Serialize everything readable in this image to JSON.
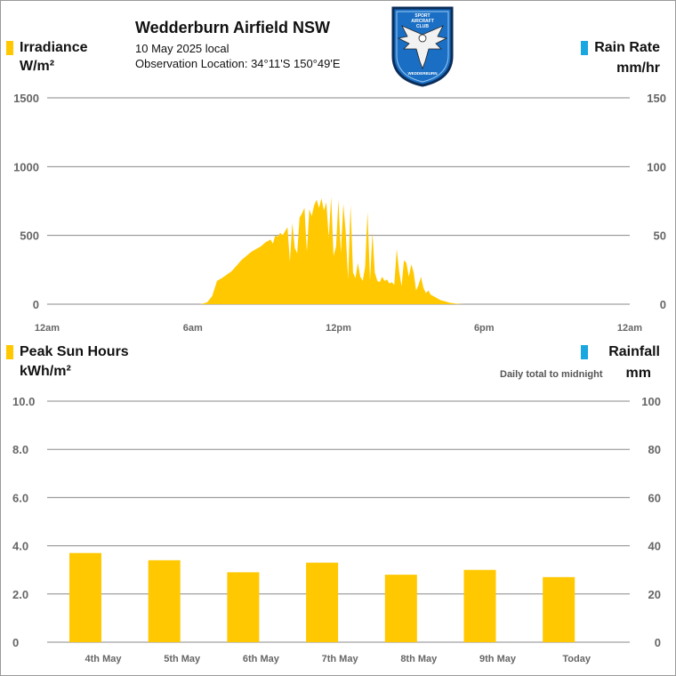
{
  "header": {
    "title": "Wedderburn Airfield NSW",
    "date_label": "10 May 2025 local",
    "location_label": "Observation Location: 34°11'S 150°49'E",
    "logo_text": [
      "SPORT",
      "AIRCRAFT",
      "CLUB",
      "WEDDERBURN"
    ]
  },
  "colors": {
    "irradiance": "#ffc800",
    "rain": "#1aa6e0",
    "grid": "#8a8a8a",
    "tick": "#666666"
  },
  "top_panel": {
    "left_title": "Irradiance",
    "left_unit": "W/m²",
    "right_title": "Rain Rate",
    "right_unit": "mm/hr"
  },
  "bottom_panel": {
    "left_title": "Peak Sun Hours",
    "left_unit": "kWh/m²",
    "right_title": "Rainfall",
    "right_unit": "mm",
    "note": "Daily total to midnight"
  },
  "chart_data": [
    {
      "type": "area",
      "series": [
        {
          "name": "Irradiance",
          "x": [
            6.3,
            6.5,
            6.6,
            6.8,
            7.0,
            7.2,
            7.4,
            7.6,
            7.8,
            8.0,
            8.2,
            8.4,
            8.6,
            8.8,
            9.0,
            9.1,
            9.2,
            9.3,
            9.4,
            9.5,
            9.6,
            9.7,
            9.8,
            9.9,
            10.0,
            10.1,
            10.2,
            10.3,
            10.4,
            10.5,
            10.6,
            10.7,
            10.8,
            10.9,
            11.0,
            11.1,
            11.2,
            11.3,
            11.4,
            11.5,
            11.6,
            11.7,
            11.8,
            11.9,
            12.0,
            12.1,
            12.2,
            12.3,
            12.4,
            12.5,
            12.6,
            12.7,
            12.8,
            12.9,
            13.0,
            13.1,
            13.2,
            13.3,
            13.4,
            13.5,
            13.6,
            13.7,
            13.8,
            13.9,
            14.0,
            14.1,
            14.2,
            14.3,
            14.4,
            14.5,
            14.6,
            14.7,
            14.8,
            14.9,
            15.0,
            15.1,
            15.2,
            15.3,
            15.4,
            15.5,
            15.6,
            15.7,
            15.8,
            15.9,
            16.0,
            16.2,
            16.4,
            16.6,
            16.8,
            17.0,
            17.2,
            17.4,
            17.6
          ],
          "y": [
            0,
            8,
            15,
            60,
            170,
            190,
            215,
            240,
            280,
            320,
            350,
            380,
            400,
            420,
            450,
            460,
            470,
            440,
            500,
            490,
            520,
            500,
            530,
            560,
            310,
            590,
            410,
            370,
            630,
            660,
            700,
            380,
            690,
            640,
            720,
            760,
            700,
            770,
            680,
            740,
            480,
            780,
            350,
            420,
            760,
            370,
            730,
            520,
            180,
            720,
            230,
            190,
            300,
            200,
            170,
            270,
            670,
            170,
            520,
            230,
            170,
            160,
            200,
            170,
            180,
            150,
            160,
            140,
            400,
            240,
            130,
            320,
            300,
            200,
            290,
            230,
            100,
            140,
            200,
            120,
            80,
            100,
            70,
            60,
            50,
            30,
            20,
            10,
            5,
            2,
            0,
            0,
            0
          ]
        },
        {
          "name": "Rain Rate",
          "x": [],
          "y": []
        }
      ],
      "x_ticks": [
        "12am",
        "6am",
        "12pm",
        "6pm",
        "12am"
      ],
      "y_ticks": [
        "0",
        "500",
        "1000",
        "1500"
      ],
      "y_ticks_right": [
        "0",
        "50",
        "100",
        "150"
      ],
      "ylim": [
        0,
        1500
      ],
      "ylim_right": [
        0,
        150
      ],
      "xlim_hours": [
        0,
        24
      ],
      "grid": true
    },
    {
      "type": "bar",
      "categories": [
        "4th May",
        "5th May",
        "6th May",
        "7th May",
        "8th May",
        "9th May",
        "Today"
      ],
      "series": [
        {
          "name": "Peak Sun Hours",
          "values": [
            3.7,
            3.4,
            2.9,
            3.3,
            2.8,
            3.0,
            2.7
          ]
        },
        {
          "name": "Rainfall",
          "values": [
            0,
            0,
            0,
            0,
            0,
            0,
            0
          ]
        }
      ],
      "y_ticks": [
        "0",
        "2.0",
        "4.0",
        "6.0",
        "8.0",
        "10.0"
      ],
      "y_ticks_right": [
        "0",
        "20",
        "40",
        "60",
        "80",
        "100"
      ],
      "ylim": [
        0,
        10
      ],
      "ylim_right": [
        0,
        100
      ],
      "grid": true
    }
  ]
}
